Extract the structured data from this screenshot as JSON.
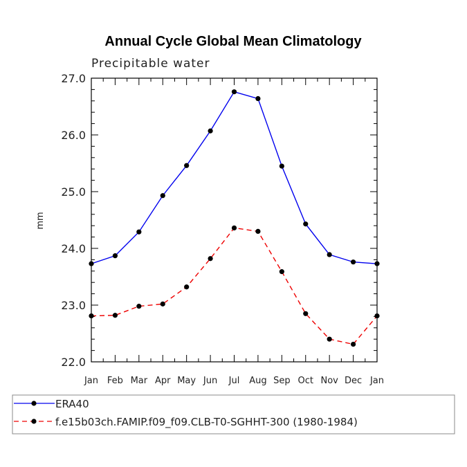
{
  "chart_data": {
    "type": "line",
    "title": "Annual Cycle Global Mean Climatology",
    "subtitle": "Precipitable water",
    "xlabel": "",
    "ylabel": "mm",
    "ylim": [
      22.0,
      27.0
    ],
    "yticks": [
      "22.0",
      "23.0",
      "24.0",
      "25.0",
      "26.0",
      "27.0"
    ],
    "categories": [
      "Jan",
      "Feb",
      "Mar",
      "Apr",
      "May",
      "Jun",
      "Jul",
      "Aug",
      "Sep",
      "Oct",
      "Nov",
      "Dec",
      "Jan"
    ],
    "series": [
      {
        "name": "ERA40",
        "color": "#0000ee",
        "dash": "solid",
        "values": [
          23.73,
          23.87,
          24.29,
          24.93,
          25.46,
          26.07,
          26.76,
          26.64,
          25.45,
          24.43,
          23.89,
          23.76,
          23.73
        ]
      },
      {
        "name": "f.e15b03ch.FAMIP.f09_f09.CLB-T0-SGHHT-300 (1980-1984)",
        "color": "#ee0000",
        "dash": "dashed",
        "values": [
          22.81,
          22.82,
          22.98,
          23.02,
          23.32,
          23.82,
          24.36,
          24.3,
          23.59,
          22.85,
          22.4,
          22.31,
          22.81
        ]
      }
    ],
    "legend_position": "bottom"
  }
}
